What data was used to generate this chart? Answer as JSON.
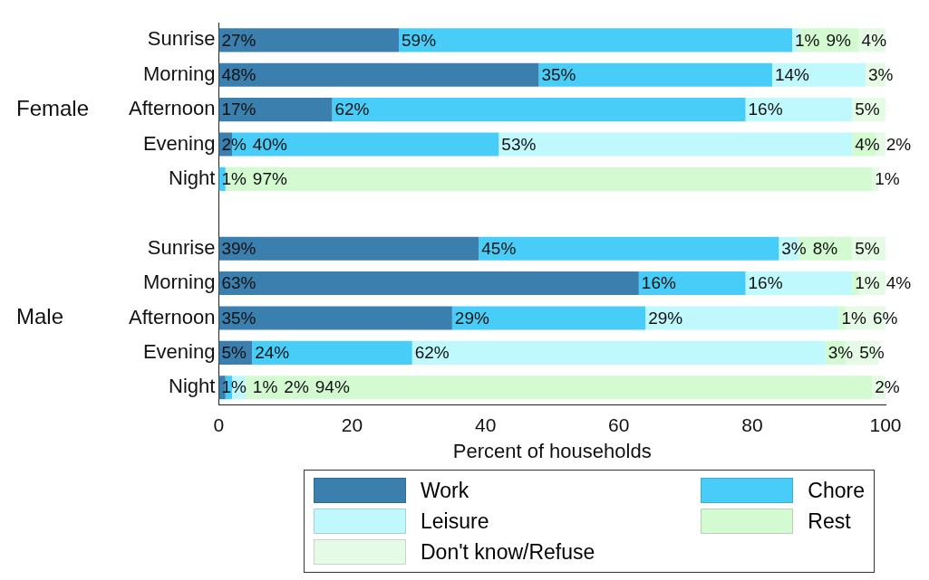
{
  "chart_data": {
    "type": "bar",
    "orientation": "horizontal",
    "stacked": true,
    "categories": [
      "Sunrise",
      "Morning",
      "Afternoon",
      "Evening",
      "Night",
      null,
      "Sunrise",
      "Morning",
      "Afternoon",
      "Evening",
      "Night"
    ],
    "series": [
      {
        "name": "Work",
        "color": "#3a7fad",
        "values": [
          27,
          48,
          17,
          2,
          0,
          null,
          39,
          63,
          35,
          5,
          1
        ],
        "value_labels": [
          "27%",
          "48%",
          "17%",
          "2%",
          null,
          null,
          "39%",
          "63%",
          "35%",
          "5%",
          "1%"
        ]
      },
      {
        "name": "Chore",
        "color": "#48cdf8",
        "values": [
          59,
          35,
          62,
          40,
          1,
          null,
          45,
          16,
          29,
          24,
          1
        ],
        "value_labels": [
          "59%",
          "35%",
          "62%",
          "40%",
          "1%",
          null,
          "45%",
          "16%",
          "29%",
          "24%",
          "1%"
        ]
      },
      {
        "name": "Leisure",
        "color": "#bff8fd",
        "values": [
          1,
          14,
          16,
          53,
          0,
          null,
          3,
          16,
          29,
          62,
          2
        ],
        "value_labels": [
          "1%",
          "14%",
          "16%",
          "53%",
          null,
          null,
          "3%",
          "16%",
          "29%",
          "62%",
          "2%"
        ]
      },
      {
        "name": "Rest",
        "color": "#d3fad0",
        "values": [
          9,
          0,
          0,
          3.5,
          97,
          null,
          8,
          1,
          1,
          3,
          94
        ],
        "value_labels": [
          "9%",
          null,
          null,
          "4%",
          "97%",
          null,
          "8%",
          "1%",
          "1%",
          "3%",
          "94%"
        ]
      },
      {
        "name": "Don't know/Refuse",
        "color": "#e6fbe6",
        "values": [
          4,
          3,
          5,
          1.5,
          1,
          null,
          5,
          4,
          6,
          5,
          2
        ],
        "value_labels": [
          "4%",
          "3%",
          "5%",
          "2%",
          "1%",
          null,
          "5%",
          "4%",
          "6%",
          "5%",
          "2%"
        ]
      }
    ],
    "annotations": [
      "Female",
      "Male"
    ],
    "xlabel": "Percent of households",
    "xlim": [
      0,
      100
    ],
    "xticks": [
      0,
      20,
      40,
      60,
      80,
      100
    ],
    "grid": false,
    "legend": "bottom"
  }
}
